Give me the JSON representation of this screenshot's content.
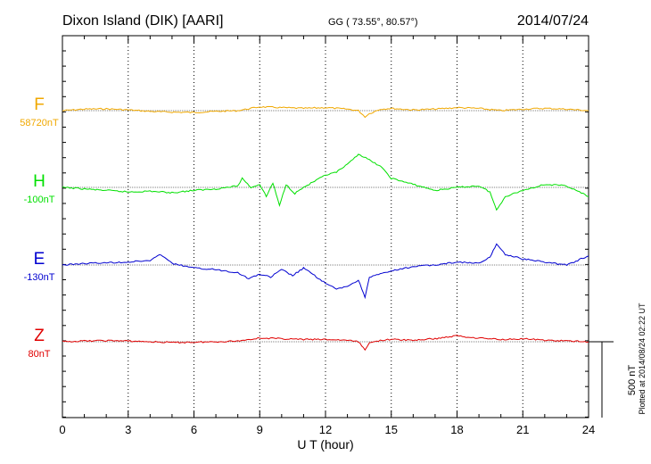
{
  "header": {
    "station": "Dixon Island (DIK)  [AARI]",
    "coords": "GG ( 73.55°,  80.57°)",
    "date": "2014/07/24"
  },
  "side_note": "Plotted at 2014/08/24 02:22 UT",
  "scale_bar": {
    "label": "500 nT",
    "value_nT": 500
  },
  "chart_data": {
    "type": "line",
    "xlabel": "U T (hour)",
    "xlim": [
      0,
      24
    ],
    "x_ticks": [
      "0",
      "3",
      "6",
      "9",
      "12",
      "15",
      "18",
      "21",
      "24"
    ],
    "grid": "dotted vertical every 3 hours",
    "series": [
      {
        "name": "F",
        "baseline": "58720nT",
        "color": "#f0a800",
        "x": [
          0,
          1,
          2,
          3,
          4,
          5,
          6,
          7,
          8,
          9,
          10,
          11,
          12,
          13,
          13.5,
          13.8,
          14,
          14.5,
          15,
          16,
          17,
          18,
          19,
          20,
          21,
          22,
          23,
          24
        ],
        "y": [
          0,
          10,
          12,
          5,
          -5,
          -10,
          -12,
          -5,
          0,
          25,
          20,
          15,
          20,
          10,
          0,
          -40,
          -20,
          10,
          15,
          5,
          10,
          20,
          15,
          0,
          10,
          15,
          10,
          0
        ]
      },
      {
        "name": "H",
        "baseline": "-100nT",
        "color": "#00e000",
        "x": [
          0,
          1,
          2,
          3,
          4,
          5,
          6,
          7,
          8,
          8.2,
          8.6,
          9,
          9.3,
          9.6,
          9.9,
          10.2,
          10.6,
          11,
          11.5,
          12,
          12.5,
          13,
          13.5,
          14,
          14.5,
          15,
          15.5,
          16,
          17,
          18,
          19,
          19.5,
          19.8,
          20.2,
          21,
          22,
          23,
          24
        ],
        "y": [
          0,
          -10,
          -20,
          -30,
          -25,
          -35,
          -20,
          -10,
          10,
          60,
          0,
          20,
          -60,
          30,
          -120,
          20,
          -40,
          0,
          40,
          80,
          100,
          150,
          220,
          180,
          140,
          60,
          40,
          20,
          -20,
          0,
          10,
          -30,
          -150,
          -60,
          -20,
          20,
          10,
          -60
        ]
      },
      {
        "name": "E",
        "baseline": "-130nT",
        "color": "#0000d0",
        "x": [
          0,
          1,
          2,
          3,
          4,
          4.5,
          5,
          6,
          7,
          8,
          8.5,
          9,
          9.5,
          10,
          10.5,
          11,
          12,
          12.5,
          13,
          13.5,
          13.8,
          14,
          15,
          16,
          17,
          18,
          19,
          19.5,
          19.8,
          20.2,
          21,
          22,
          23,
          24
        ],
        "y": [
          0,
          10,
          15,
          20,
          30,
          70,
          10,
          -20,
          -30,
          -50,
          -90,
          -60,
          -80,
          -30,
          -70,
          -20,
          -120,
          -160,
          -140,
          -100,
          -210,
          -80,
          -40,
          -10,
          0,
          20,
          10,
          50,
          140,
          70,
          40,
          20,
          0,
          60
        ]
      },
      {
        "name": "Z",
        "baseline": "80nT",
        "color": "#e00000",
        "x": [
          0,
          1,
          2,
          3,
          4,
          5,
          6,
          7,
          8,
          9,
          10,
          11,
          12,
          13,
          13.5,
          13.8,
          14,
          14.5,
          15,
          16,
          17,
          18,
          18.5,
          19,
          20,
          21,
          22,
          23,
          24
        ],
        "y": [
          0,
          5,
          8,
          5,
          0,
          -5,
          -3,
          0,
          5,
          25,
          20,
          15,
          15,
          10,
          0,
          -50,
          -10,
          10,
          15,
          10,
          20,
          40,
          30,
          25,
          15,
          20,
          10,
          5,
          0
        ]
      }
    ]
  }
}
